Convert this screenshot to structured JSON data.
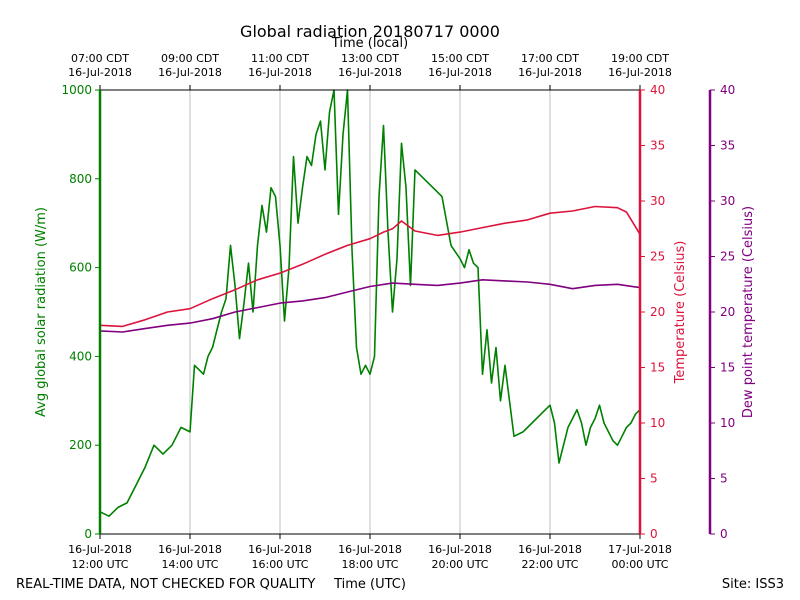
{
  "chart_data": {
    "type": "line",
    "title": "Global radiation 20180717 0000",
    "top_axis_label": "Time (local)",
    "xlabel": "Time (UTC)",
    "footer_left": "REAL-TIME DATA, NOT CHECKED FOR QUALITY",
    "footer_right": "Site: ISS3",
    "x_range_hours_utc": [
      12,
      24
    ],
    "bottom_ticks": [
      {
        "hour": 12,
        "line1": "16-Jul-2018",
        "line2": "12:00 UTC"
      },
      {
        "hour": 14,
        "line1": "16-Jul-2018",
        "line2": "14:00 UTC"
      },
      {
        "hour": 16,
        "line1": "16-Jul-2018",
        "line2": "16:00 UTC"
      },
      {
        "hour": 18,
        "line1": "16-Jul-2018",
        "line2": "18:00 UTC"
      },
      {
        "hour": 20,
        "line1": "16-Jul-2018",
        "line2": "20:00 UTC"
      },
      {
        "hour": 22,
        "line1": "16-Jul-2018",
        "line2": "22:00 UTC"
      },
      {
        "hour": 24,
        "line1": "17-Jul-2018",
        "line2": "00:00 UTC"
      }
    ],
    "top_ticks": [
      {
        "hour": 12,
        "line1": "07:00 CDT",
        "line2": "16-Jul-2018"
      },
      {
        "hour": 14,
        "line1": "09:00 CDT",
        "line2": "16-Jul-2018"
      },
      {
        "hour": 16,
        "line1": "11:00 CDT",
        "line2": "16-Jul-2018"
      },
      {
        "hour": 18,
        "line1": "13:00 CDT",
        "line2": "16-Jul-2018"
      },
      {
        "hour": 20,
        "line1": "15:00 CDT",
        "line2": "16-Jul-2018"
      },
      {
        "hour": 22,
        "line1": "17:00 CDT",
        "line2": "16-Jul-2018"
      },
      {
        "hour": 24,
        "line1": "19:00 CDT",
        "line2": "16-Jul-2018"
      }
    ],
    "grid": "vertical",
    "axes": {
      "left": {
        "label": "Avg global solar radiation (W/m)",
        "range": [
          0,
          1000
        ],
        "ticks": [
          0,
          200,
          400,
          600,
          800,
          1000
        ],
        "color": "#008000"
      },
      "right1": {
        "label": "Temperature (Celsius)",
        "range": [
          0,
          40
        ],
        "ticks": [
          0,
          5,
          10,
          15,
          20,
          25,
          30,
          35,
          40
        ],
        "color": "#dc143c"
      },
      "right2": {
        "label": "Dew point temperature (Celsius)",
        "range": [
          0,
          40
        ],
        "ticks": [
          0,
          5,
          10,
          15,
          20,
          25,
          30,
          35,
          40
        ],
        "color": "#800080"
      }
    },
    "series": [
      {
        "axis": "left",
        "color": "#008000",
        "x": [
          12.0,
          12.2,
          12.4,
          12.6,
          12.8,
          13.0,
          13.2,
          13.4,
          13.6,
          13.8,
          14.0,
          14.1,
          14.3,
          14.4,
          14.5,
          14.7,
          14.8,
          14.9,
          15.0,
          15.1,
          15.2,
          15.3,
          15.4,
          15.5,
          15.6,
          15.7,
          15.8,
          15.9,
          16.0,
          16.1,
          16.2,
          16.3,
          16.4,
          16.5,
          16.6,
          16.7,
          16.8,
          16.9,
          17.0,
          17.1,
          17.2,
          17.3,
          17.4,
          17.5,
          17.6,
          17.7,
          17.8,
          17.9,
          18.0,
          18.1,
          18.2,
          18.3,
          18.4,
          18.5,
          18.6,
          18.7,
          18.8,
          18.9,
          19.0,
          19.2,
          19.4,
          19.6,
          19.8,
          20.0,
          20.1,
          20.2,
          20.3,
          20.4,
          20.5,
          20.6,
          20.7,
          20.8,
          20.9,
          21.0,
          21.2,
          21.4,
          21.6,
          21.8,
          22.0,
          22.1,
          22.2,
          22.3,
          22.4,
          22.5,
          22.6,
          22.7,
          22.8,
          22.9,
          23.0,
          23.1,
          23.2,
          23.3,
          23.4,
          23.5,
          23.6,
          23.7,
          23.8,
          23.9,
          24.0
        ],
        "values": [
          50,
          40,
          60,
          70,
          110,
          150,
          200,
          180,
          200,
          240,
          230,
          380,
          360,
          400,
          420,
          500,
          530,
          650,
          560,
          440,
          520,
          610,
          500,
          650,
          740,
          680,
          780,
          760,
          650,
          480,
          600,
          850,
          700,
          780,
          850,
          830,
          900,
          930,
          820,
          950,
          1000,
          720,
          900,
          1000,
          640,
          420,
          360,
          380,
          360,
          400,
          760,
          920,
          680,
          500,
          620,
          880,
          780,
          560,
          820,
          800,
          780,
          760,
          650,
          620,
          600,
          640,
          610,
          600,
          360,
          460,
          340,
          420,
          300,
          380,
          220,
          230,
          250,
          270,
          290,
          250,
          160,
          200,
          240,
          260,
          280,
          250,
          200,
          240,
          260,
          290,
          250,
          230,
          210,
          200,
          220,
          240,
          250,
          270,
          280
        ]
      },
      {
        "axis": "right1",
        "color": "#dc143c",
        "x": [
          12.0,
          12.5,
          13.0,
          13.5,
          14.0,
          14.5,
          15.0,
          15.5,
          16.0,
          16.5,
          17.0,
          17.5,
          18.0,
          18.3,
          18.5,
          18.7,
          19.0,
          19.5,
          20.0,
          20.5,
          21.0,
          21.5,
          22.0,
          22.5,
          23.0,
          23.5,
          23.7,
          24.0
        ],
        "values": [
          18.8,
          18.7,
          19.3,
          20.0,
          20.3,
          21.2,
          22.0,
          22.9,
          23.5,
          24.3,
          25.2,
          26.0,
          26.6,
          27.2,
          27.5,
          28.2,
          27.3,
          26.9,
          27.2,
          27.6,
          28.0,
          28.3,
          28.9,
          29.1,
          29.5,
          29.4,
          29.0,
          27.0
        ]
      },
      {
        "axis": "right2",
        "color": "#800080",
        "x": [
          12.0,
          12.5,
          13.0,
          13.5,
          14.0,
          14.5,
          15.0,
          15.5,
          16.0,
          16.5,
          17.0,
          17.5,
          18.0,
          18.5,
          19.0,
          19.5,
          20.0,
          20.5,
          21.0,
          21.5,
          22.0,
          22.5,
          23.0,
          23.5,
          24.0
        ],
        "values": [
          18.3,
          18.2,
          18.5,
          18.8,
          19.0,
          19.4,
          20.0,
          20.4,
          20.8,
          21.0,
          21.3,
          21.8,
          22.3,
          22.6,
          22.5,
          22.4,
          22.6,
          22.9,
          22.8,
          22.7,
          22.5,
          22.1,
          22.4,
          22.5,
          22.2
        ]
      }
    ]
  }
}
